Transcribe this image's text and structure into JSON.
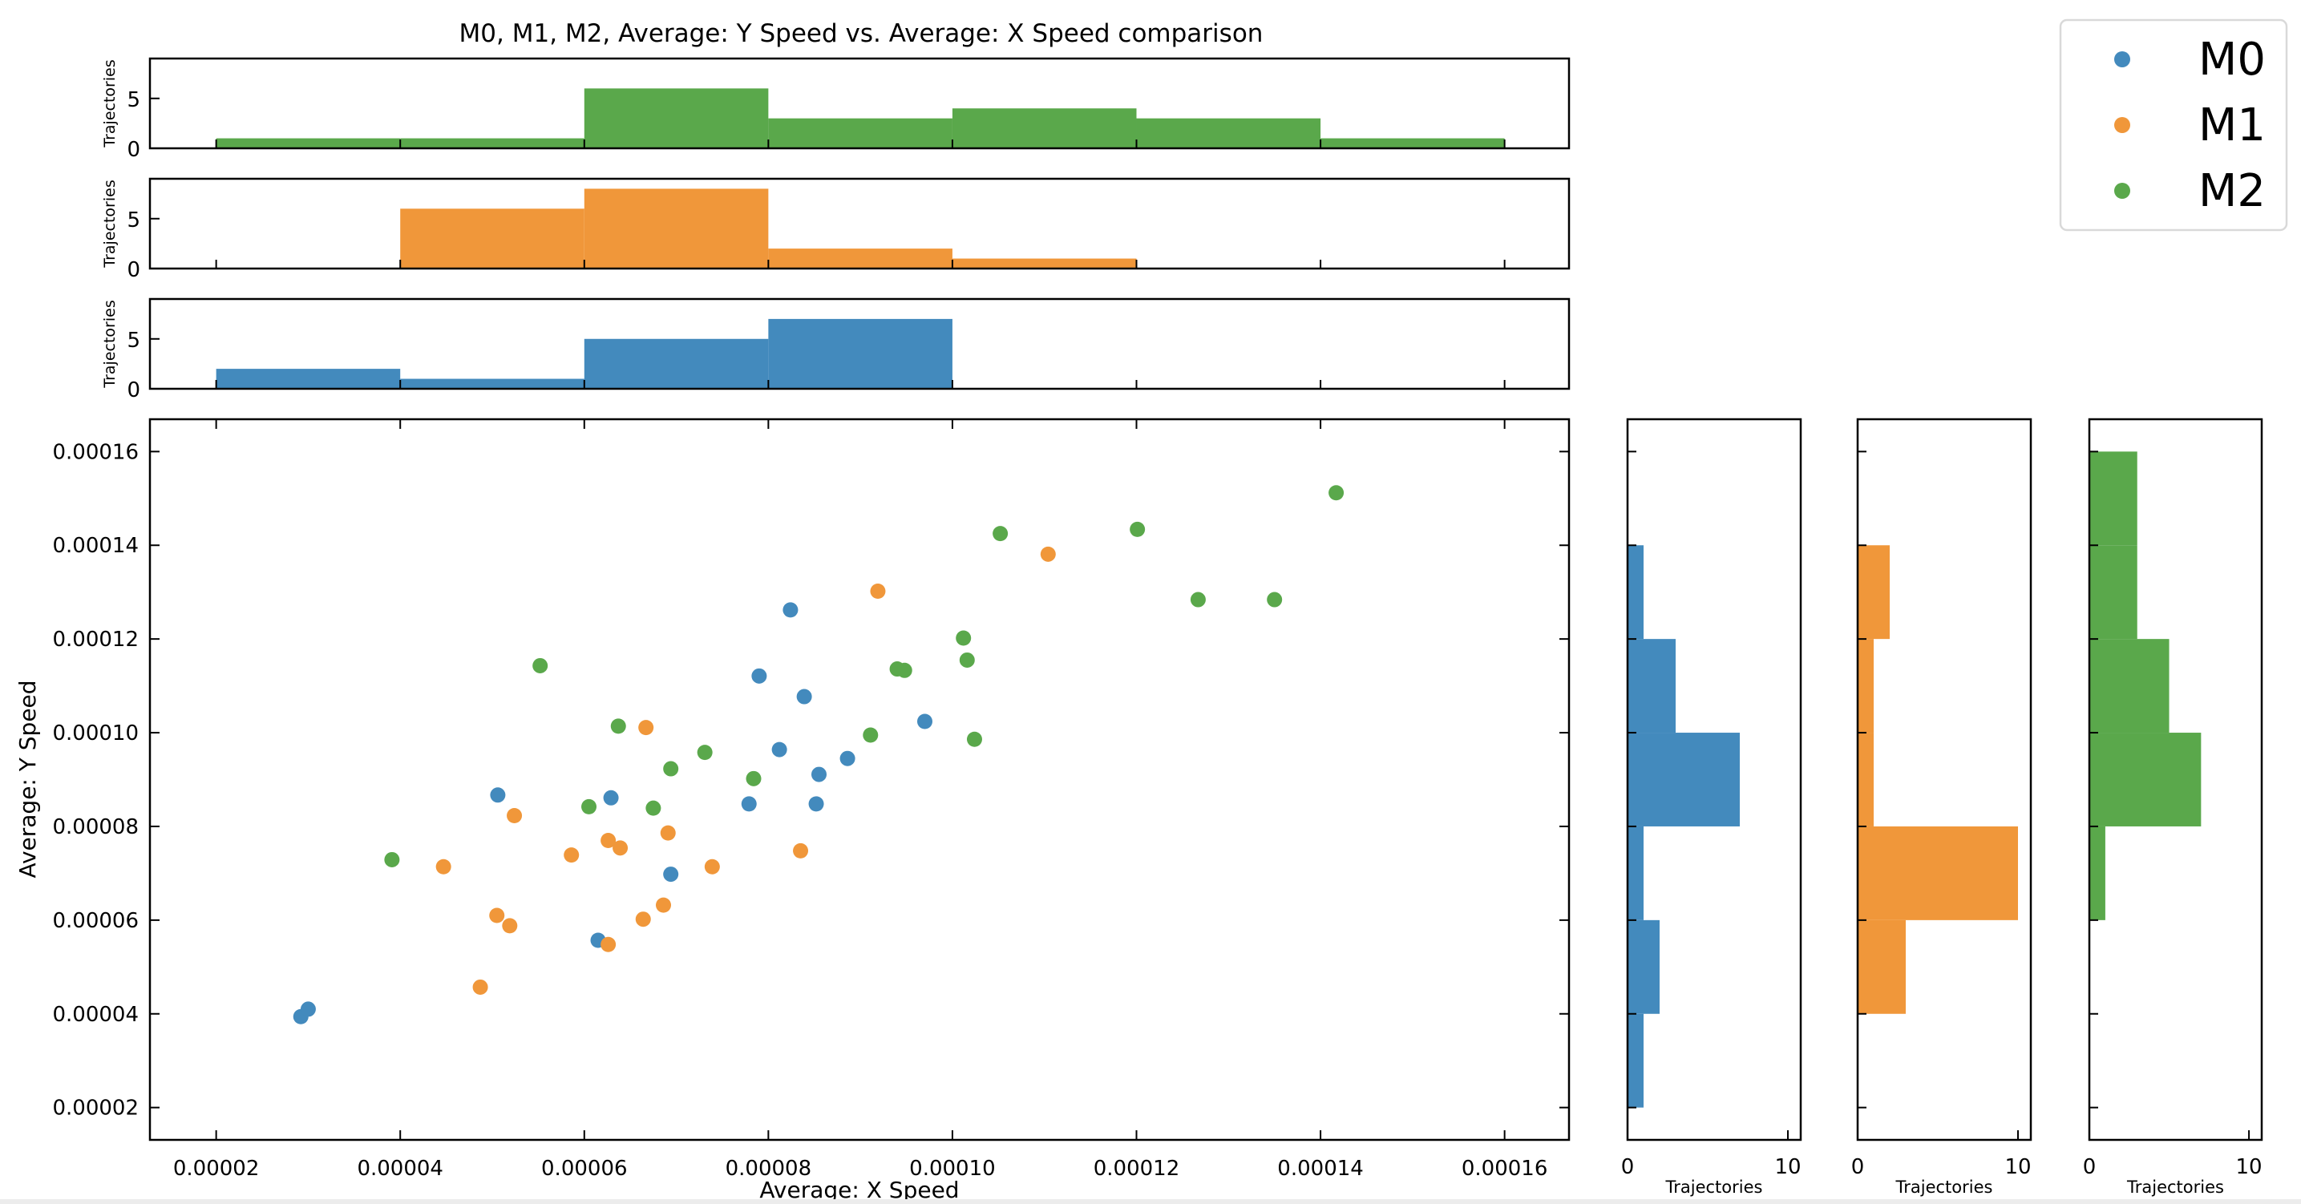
{
  "chart_data": {
    "type": "scatter",
    "title": "M0, M1, M2, Average: Y Speed vs. Average: X Speed comparison",
    "xlabel": "Average: X Speed",
    "ylabel": "Average: Y Speed",
    "xlim": [
      1.28e-05,
      0.000167
    ],
    "ylim": [
      1.31e-05,
      0.0001669
    ],
    "xticks": [
      2e-05,
      4e-05,
      6e-05,
      8e-05,
      0.0001,
      0.00012,
      0.00014,
      0.00016
    ],
    "xtick_labels": [
      "0.00002",
      "0.00004",
      "0.00006",
      "0.00008",
      "0.00010",
      "0.00012",
      "0.00014",
      "0.00016"
    ],
    "yticks": [
      2e-05,
      4e-05,
      6e-05,
      8e-05,
      0.0001,
      0.00012,
      0.00014,
      0.00016
    ],
    "ytick_labels": [
      "0.00002",
      "0.00004",
      "0.00006",
      "0.00008",
      "0.00010",
      "0.00012",
      "0.00014",
      "0.00016"
    ],
    "grid": false,
    "legend_position": "top-right",
    "series": [
      {
        "name": "M0",
        "color": "#438ABD",
        "x": [
          2.92e-05,
          3e-05,
          5.06e-05,
          6.29e-05,
          6.15e-05,
          6.94e-05,
          7.9e-05,
          8.24e-05,
          8.39e-05,
          8.12e-05,
          7.79e-05,
          8.52e-05,
          8.55e-05,
          8.86e-05,
          9.7e-05
        ],
        "y": [
          3.94e-05,
          4.1e-05,
          8.67e-05,
          8.61e-05,
          5.57e-05,
          6.98e-05,
          0.0001121,
          0.0001262,
          0.0001077,
          9.64e-05,
          8.48e-05,
          8.48e-05,
          9.11e-05,
          9.45e-05,
          0.0001024
        ]
      },
      {
        "name": "M1",
        "color": "#F0973A",
        "x": [
          4.87e-05,
          4.47e-05,
          5.05e-05,
          5.19e-05,
          5.24e-05,
          5.86e-05,
          6.26e-05,
          6.39e-05,
          6.26e-05,
          6.67e-05,
          6.64e-05,
          6.86e-05,
          6.91e-05,
          7.39e-05,
          8.35e-05,
          9.19e-05,
          0.0001104
        ],
        "y": [
          4.57e-05,
          7.14e-05,
          6.1e-05,
          5.88e-05,
          8.23e-05,
          7.39e-05,
          7.7e-05,
          7.54e-05,
          5.48e-05,
          0.0001011,
          6.02e-05,
          6.32e-05,
          7.86e-05,
          7.14e-05,
          7.48e-05,
          0.0001302,
          0.0001381
        ]
      },
      {
        "name": "M2",
        "color": "#5AA84B",
        "x": [
          3.91e-05,
          5.52e-05,
          6.05e-05,
          6.37e-05,
          6.75e-05,
          6.94e-05,
          7.31e-05,
          7.84e-05,
          9.11e-05,
          9.4e-05,
          9.48e-05,
          0.0001012,
          0.0001016,
          0.0001024,
          0.0001052,
          0.0001201,
          0.0001267,
          0.000135,
          0.0001417
        ],
        "y": [
          7.29e-05,
          0.0001143,
          8.42e-05,
          0.0001014,
          8.39e-05,
          9.23e-05,
          9.58e-05,
          9.02e-05,
          9.95e-05,
          0.0001136,
          0.0001133,
          0.0001202,
          0.0001155,
          9.86e-05,
          0.0001425,
          0.0001434,
          0.0001284,
          0.0001284,
          0.0001512
        ]
      }
    ],
    "x_histograms": {
      "bin_edges": [
        2e-05,
        4e-05,
        6e-05,
        8e-05,
        0.0001,
        0.00012,
        0.00014,
        0.00016
      ],
      "ylabel": "Trajectories",
      "ylim": [
        0,
        9
      ],
      "yticks": [
        0,
        5
      ],
      "ytick_labels": [
        "0",
        "5"
      ],
      "order_top_to_bottom": [
        "M2",
        "M1",
        "M0"
      ],
      "counts": {
        "M2": [
          1,
          1,
          6,
          3,
          4,
          3,
          1
        ],
        "M1": [
          0,
          6,
          8,
          2,
          1,
          0,
          0
        ],
        "M0": [
          2,
          1,
          5,
          7,
          0,
          0,
          0
        ]
      }
    },
    "y_histograms": {
      "bin_edges": [
        2e-05,
        4e-05,
        6e-05,
        8e-05,
        0.0001,
        0.00012,
        0.00014,
        0.00016
      ],
      "xlabel": "Trajectories",
      "xlim": [
        0,
        10.8
      ],
      "xticks": [
        0,
        10
      ],
      "xtick_labels": [
        "0",
        "10"
      ],
      "order_left_to_right": [
        "M0",
        "M1",
        "M2"
      ],
      "counts": {
        "M0": [
          1,
          2,
          1,
          7,
          3,
          1,
          0
        ],
        "M1": [
          0,
          3,
          10,
          1,
          1,
          2,
          0
        ],
        "M2": [
          0,
          0,
          1,
          7,
          5,
          3,
          3
        ]
      }
    }
  },
  "legend": {
    "items": [
      {
        "label": "M0",
        "color": "#438ABD"
      },
      {
        "label": "M1",
        "color": "#F0973A"
      },
      {
        "label": "M2",
        "color": "#5AA84B"
      }
    ]
  }
}
